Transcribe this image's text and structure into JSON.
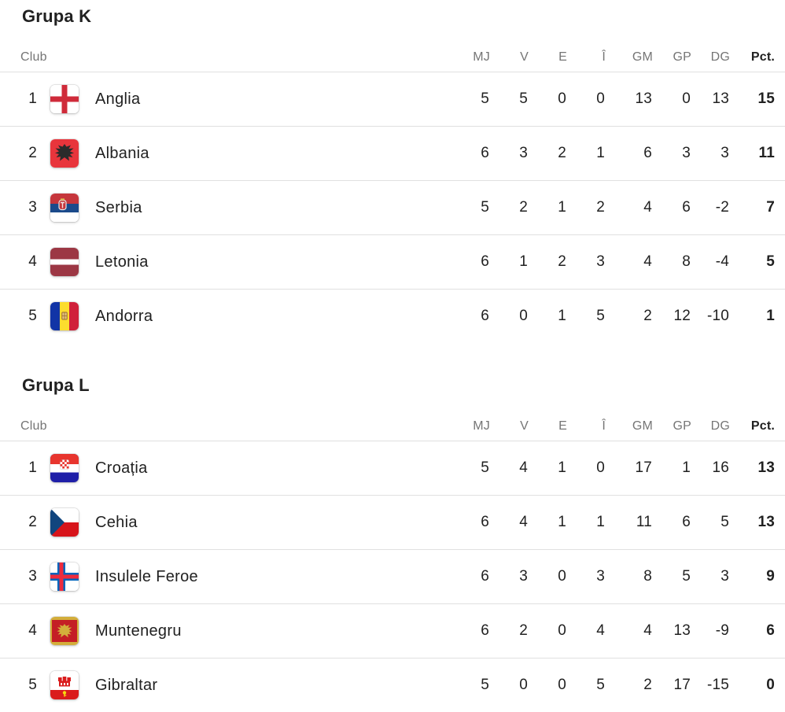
{
  "page": {
    "background_color": "#ffffff",
    "text_color": "#212121",
    "muted_color": "#757575",
    "divider_color": "#e0e0e0"
  },
  "columns": {
    "club": "Club",
    "stats": [
      "MJ",
      "V",
      "E",
      "Î",
      "GM",
      "GP",
      "DG"
    ],
    "points": "Pct."
  },
  "groups": [
    {
      "title": "Grupa K",
      "rows": [
        {
          "pos": "1",
          "flag": "england-flag-icon",
          "club": "Anglia",
          "stats": [
            "5",
            "5",
            "0",
            "0",
            "13",
            "0",
            "13"
          ],
          "pct": "15"
        },
        {
          "pos": "2",
          "flag": "albania-flag-icon",
          "club": "Albania",
          "stats": [
            "6",
            "3",
            "2",
            "1",
            "6",
            "3",
            "3"
          ],
          "pct": "11"
        },
        {
          "pos": "3",
          "flag": "serbia-flag-icon",
          "club": "Serbia",
          "stats": [
            "5",
            "2",
            "1",
            "2",
            "4",
            "6",
            "-2"
          ],
          "pct": "7"
        },
        {
          "pos": "4",
          "flag": "latvia-flag-icon",
          "club": "Letonia",
          "stats": [
            "6",
            "1",
            "2",
            "3",
            "4",
            "8",
            "-4"
          ],
          "pct": "5"
        },
        {
          "pos": "5",
          "flag": "andorra-flag-icon",
          "club": "Andorra",
          "stats": [
            "6",
            "0",
            "1",
            "5",
            "2",
            "12",
            "-10"
          ],
          "pct": "1"
        }
      ]
    },
    {
      "title": "Grupa L",
      "rows": [
        {
          "pos": "1",
          "flag": "croatia-flag-icon",
          "club": "Croația",
          "stats": [
            "5",
            "4",
            "1",
            "0",
            "17",
            "1",
            "16"
          ],
          "pct": "13"
        },
        {
          "pos": "2",
          "flag": "czechia-flag-icon",
          "club": "Cehia",
          "stats": [
            "6",
            "4",
            "1",
            "1",
            "11",
            "6",
            "5"
          ],
          "pct": "13"
        },
        {
          "pos": "3",
          "flag": "faroe-islands-flag-icon",
          "club": "Insulele Feroe",
          "stats": [
            "6",
            "3",
            "0",
            "3",
            "8",
            "5",
            "3"
          ],
          "pct": "9"
        },
        {
          "pos": "4",
          "flag": "montenegro-flag-icon",
          "club": "Muntenegru",
          "stats": [
            "6",
            "2",
            "0",
            "4",
            "4",
            "13",
            "-9"
          ],
          "pct": "6"
        },
        {
          "pos": "5",
          "flag": "gibraltar-flag-icon",
          "club": "Gibraltar",
          "stats": [
            "5",
            "0",
            "0",
            "5",
            "2",
            "17",
            "-15"
          ],
          "pct": "0"
        }
      ]
    }
  ]
}
